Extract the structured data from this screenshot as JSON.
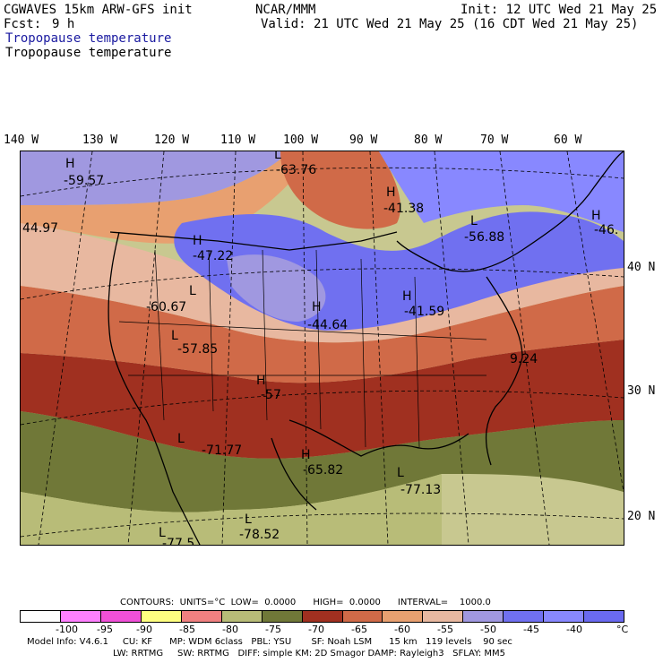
{
  "header": {
    "model": "CGWAVES 15km ARW-GFS init",
    "fcst_label": "Fcst:",
    "fcst_value": "9 h",
    "org": "NCAR/MMM",
    "init": "Init: 12 UTC Wed 21 May 25",
    "valid": "Valid: 21 UTC Wed 21 May 25 (16 CDT Wed 21 May 25)",
    "field_title_blue": "Tropopause temperature",
    "field_title_black": "Tropopause temperature"
  },
  "longitudes": [
    "140 W",
    "130 W",
    "120 W",
    "110 W",
    "100 W",
    "90 W",
    "80 W",
    "70 W",
    "60 W"
  ],
  "latitudes": [
    "40 N",
    "30 N",
    "20 N"
  ],
  "map_labels": [
    {
      "sym": "H",
      "val": "-59.57"
    },
    {
      "sym": "L",
      "val": "-63.76"
    },
    {
      "sym": "H",
      "val": "-41.38"
    },
    {
      "sym": "L",
      "val": "-56.88"
    },
    {
      "sym": "H",
      "val": "-46."
    },
    {
      "sym": "",
      "val": "44.97"
    },
    {
      "sym": "H",
      "val": "-47.22"
    },
    {
      "sym": "L",
      "val": "-60.67"
    },
    {
      "sym": "H",
      "val": "-44.64"
    },
    {
      "sym": "H",
      "val": "-41.59"
    },
    {
      "sym": "L",
      "val": "-57.85"
    },
    {
      "sym": "",
      "val": "9.24"
    },
    {
      "sym": "H",
      "val": "-57"
    },
    {
      "sym": "L",
      "val": "-71.77"
    },
    {
      "sym": "H",
      "val": "-65.82"
    },
    {
      "sym": "L",
      "val": "-77.13"
    },
    {
      "sym": "L",
      "val": "-78.52"
    },
    {
      "sym": "L",
      "val": "-77.5"
    }
  ],
  "contours_line": "CONTOURS:  UNITS=°C  LOW=  0.0000      HIGH=  0.0000      INTERVAL=    1000.0",
  "colorbar": {
    "colors": [
      "#ffffff",
      "#ff80ff",
      "#f050d8",
      "#ffff80",
      "#f08080",
      "#b8bc78",
      "#707838",
      "#a03020",
      "#d06a48",
      "#e8a070",
      "#e8b8a0",
      "#a098e0",
      "#7070f0",
      "#8888ff",
      "#6a6af0"
    ],
    "labels": [
      "-100",
      "-95",
      "-90",
      "-85",
      "-80",
      "-75",
      "-70",
      "-65",
      "-60",
      "-55",
      "-50",
      "-45",
      "-40",
      "°C"
    ]
  },
  "footer": {
    "line1": "Model Info: V4.6.1     CU: KF      MP: WDM 6class   PBL: YSU       SF: Noah LSM      15 km   119 levels    90 sec",
    "line2": "LW: RRTMG     SW: RRTMG   DIFF: simple KM: 2D Smagor DAMP: Rayleigh3   SFLAY: MM5"
  }
}
